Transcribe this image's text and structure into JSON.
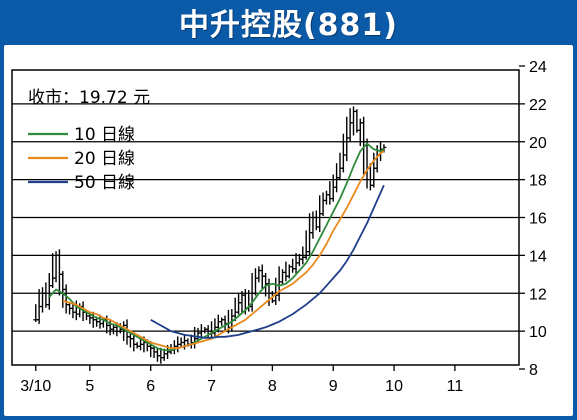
{
  "title": "中升控股(881)",
  "close_label": "收市：19.72 元",
  "chart_data": {
    "type": "line",
    "title": "中升控股(881)",
    "xlabel": "",
    "ylabel": "",
    "ylim": [
      8,
      24
    ],
    "y_ticks": [
      8,
      10,
      12,
      14,
      16,
      18,
      20,
      22,
      24
    ],
    "x_ticks": [
      "3/10",
      "5",
      "6",
      "7",
      "8",
      "9",
      "10",
      "11"
    ],
    "x_tick_positions": [
      0,
      8,
      17,
      26,
      35,
      44,
      53,
      62
    ],
    "x_range": [
      -1,
      70
    ],
    "grid": true,
    "legend_position": "top-left",
    "annotation": "收市：19.72 元",
    "candles": {
      "wick_color": "#000000",
      "points": [
        [
          0,
          10.6
        ],
        [
          0.5,
          11.3
        ],
        [
          1,
          12.0
        ],
        [
          1.5,
          11.4
        ],
        [
          2,
          12.4
        ],
        [
          2.5,
          12.8
        ],
        [
          3,
          14.0
        ],
        [
          3.5,
          13.0
        ],
        [
          4,
          12.2
        ],
        [
          4.5,
          11.4
        ],
        [
          5,
          11.2
        ],
        [
          5.5,
          11.0
        ],
        [
          6,
          10.9
        ],
        [
          6.5,
          11.3
        ],
        [
          7,
          11.0
        ],
        [
          7.5,
          10.8
        ],
        [
          8,
          10.7
        ],
        [
          8.5,
          10.6
        ],
        [
          9,
          10.5
        ],
        [
          9.5,
          10.4
        ],
        [
          10,
          10.6
        ],
        [
          10.5,
          10.3
        ],
        [
          11,
          10.1
        ],
        [
          11.5,
          10.2
        ],
        [
          12,
          10.0
        ],
        [
          12.5,
          10.1
        ],
        [
          13,
          10.3
        ],
        [
          13.5,
          9.7
        ],
        [
          14,
          9.6
        ],
        [
          14.5,
          9.3
        ],
        [
          15,
          9.2
        ],
        [
          15.5,
          9.3
        ],
        [
          16,
          9.4
        ],
        [
          16.5,
          9.2
        ],
        [
          17,
          9.1
        ],
        [
          17.5,
          8.9
        ],
        [
          18,
          8.7
        ],
        [
          18.5,
          8.6
        ],
        [
          19,
          8.8
        ],
        [
          19.5,
          8.9
        ],
        [
          20,
          9.0
        ],
        [
          20.5,
          9.2
        ],
        [
          21,
          9.3
        ],
        [
          21.5,
          9.4
        ],
        [
          22,
          9.5
        ],
        [
          22.5,
          9.3
        ],
        [
          23,
          9.4
        ],
        [
          23.5,
          9.6
        ],
        [
          24,
          9.9
        ],
        [
          24.5,
          10.0
        ],
        [
          25,
          10.1
        ],
        [
          25.5,
          10.0
        ],
        [
          26,
          9.9
        ],
        [
          26.5,
          10.2
        ],
        [
          27,
          10.5
        ],
        [
          27.5,
          10.6
        ],
        [
          28,
          10.4
        ],
        [
          28.5,
          10.2
        ],
        [
          29,
          10.8
        ],
        [
          29.5,
          11.0
        ],
        [
          30,
          11.5
        ],
        [
          30.5,
          11.9
        ],
        [
          31,
          11.2
        ],
        [
          31.5,
          11.3
        ],
        [
          32,
          12.0
        ],
        [
          32.5,
          12.8
        ],
        [
          33,
          13.2
        ],
        [
          33.5,
          12.9
        ],
        [
          34,
          12.5
        ],
        [
          34.5,
          12.0
        ],
        [
          35,
          11.6
        ],
        [
          35.5,
          11.9
        ],
        [
          36,
          12.6
        ],
        [
          36.5,
          13.1
        ],
        [
          37,
          12.9
        ],
        [
          37.5,
          13.4
        ],
        [
          38,
          13.3
        ],
        [
          38.5,
          13.6
        ],
        [
          39,
          13.8
        ],
        [
          39.5,
          13.9
        ],
        [
          40,
          14.2
        ],
        [
          40.5,
          15.2
        ],
        [
          41,
          16.0
        ],
        [
          41.5,
          15.5
        ],
        [
          42,
          16.2
        ],
        [
          42.5,
          16.9
        ],
        [
          43,
          17.2
        ],
        [
          43.5,
          17.0
        ],
        [
          44,
          17.6
        ],
        [
          44.5,
          18.1
        ],
        [
          45,
          18.6
        ],
        [
          45.5,
          19.3
        ],
        [
          46,
          20.2
        ],
        [
          46.5,
          21.0
        ],
        [
          47,
          21.6
        ],
        [
          47.5,
          20.6
        ],
        [
          48,
          21.0
        ],
        [
          48.5,
          20.0
        ],
        [
          49,
          18.6
        ],
        [
          49.5,
          17.7
        ],
        [
          50,
          18.6
        ],
        [
          50.5,
          19.3
        ],
        [
          51,
          19.6
        ],
        [
          51.5,
          19.7
        ]
      ]
    },
    "series": [
      {
        "name": "10 日線",
        "color": "#2e8b3a",
        "points": [
          [
            2,
            11.8
          ],
          [
            3,
            12.2
          ],
          [
            4,
            12.0
          ],
          [
            5,
            11.7
          ],
          [
            6,
            11.3
          ],
          [
            7,
            11.1
          ],
          [
            8,
            10.9
          ],
          [
            9,
            10.7
          ],
          [
            10,
            10.6
          ],
          [
            11,
            10.4
          ],
          [
            12,
            10.3
          ],
          [
            13,
            10.1
          ],
          [
            14,
            9.9
          ],
          [
            15,
            9.7
          ],
          [
            16,
            9.5
          ],
          [
            17,
            9.3
          ],
          [
            18,
            9.1
          ],
          [
            19,
            9.0
          ],
          [
            20,
            9.0
          ],
          [
            21,
            9.1
          ],
          [
            22,
            9.2
          ],
          [
            23,
            9.3
          ],
          [
            24,
            9.5
          ],
          [
            25,
            9.7
          ],
          [
            26,
            9.9
          ],
          [
            27,
            10.1
          ],
          [
            28,
            10.3
          ],
          [
            29,
            10.5
          ],
          [
            30,
            10.8
          ],
          [
            31,
            11.1
          ],
          [
            32,
            11.5
          ],
          [
            33,
            12.0
          ],
          [
            34,
            12.4
          ],
          [
            35,
            12.5
          ],
          [
            36,
            12.4
          ],
          [
            37,
            12.5
          ],
          [
            38,
            12.8
          ],
          [
            39,
            13.2
          ],
          [
            40,
            13.6
          ],
          [
            41,
            14.2
          ],
          [
            42,
            14.9
          ],
          [
            43,
            15.6
          ],
          [
            44,
            16.3
          ],
          [
            45,
            17.0
          ],
          [
            46,
            17.8
          ],
          [
            47,
            18.7
          ],
          [
            48,
            19.5
          ],
          [
            49,
            19.9
          ],
          [
            50,
            19.6
          ],
          [
            51,
            19.5
          ],
          [
            51.5,
            19.6
          ]
        ]
      },
      {
        "name": "20 日線",
        "color": "#e8891e",
        "points": [
          [
            4,
            11.6
          ],
          [
            5,
            11.5
          ],
          [
            6,
            11.4
          ],
          [
            7,
            11.2
          ],
          [
            8,
            11.0
          ],
          [
            9,
            10.9
          ],
          [
            10,
            10.7
          ],
          [
            11,
            10.6
          ],
          [
            12,
            10.4
          ],
          [
            13,
            10.2
          ],
          [
            14,
            10.0
          ],
          [
            15,
            9.8
          ],
          [
            16,
            9.6
          ],
          [
            17,
            9.4
          ],
          [
            18,
            9.3
          ],
          [
            19,
            9.2
          ],
          [
            20,
            9.1
          ],
          [
            21,
            9.1
          ],
          [
            22,
            9.2
          ],
          [
            23,
            9.3
          ],
          [
            24,
            9.4
          ],
          [
            25,
            9.5
          ],
          [
            26,
            9.6
          ],
          [
            27,
            9.8
          ],
          [
            28,
            10.0
          ],
          [
            29,
            10.2
          ],
          [
            30,
            10.4
          ],
          [
            31,
            10.6
          ],
          [
            32,
            10.9
          ],
          [
            33,
            11.2
          ],
          [
            34,
            11.5
          ],
          [
            35,
            11.8
          ],
          [
            36,
            12.1
          ],
          [
            37,
            12.3
          ],
          [
            38,
            12.5
          ],
          [
            39,
            12.8
          ],
          [
            40,
            13.1
          ],
          [
            41,
            13.5
          ],
          [
            42,
            14.0
          ],
          [
            43,
            14.6
          ],
          [
            44,
            15.3
          ],
          [
            45,
            15.9
          ],
          [
            46,
            16.5
          ],
          [
            47,
            17.2
          ],
          [
            48,
            17.9
          ],
          [
            49,
            18.5
          ],
          [
            50,
            19.0
          ],
          [
            51,
            19.4
          ],
          [
            51.5,
            19.5
          ]
        ]
      },
      {
        "name": "50 日線",
        "color": "#1f3f8a",
        "points": [
          [
            17,
            10.6
          ],
          [
            18,
            10.4
          ],
          [
            19,
            10.2
          ],
          [
            20,
            10.0
          ],
          [
            21,
            9.9
          ],
          [
            22,
            9.8
          ],
          [
            23,
            9.75
          ],
          [
            24,
            9.7
          ],
          [
            25,
            9.65
          ],
          [
            26,
            9.65
          ],
          [
            27,
            9.7
          ],
          [
            28,
            9.7
          ],
          [
            29,
            9.75
          ],
          [
            30,
            9.8
          ],
          [
            31,
            9.9
          ],
          [
            32,
            10.0
          ],
          [
            33,
            10.1
          ],
          [
            34,
            10.2
          ],
          [
            35,
            10.35
          ],
          [
            36,
            10.5
          ],
          [
            37,
            10.7
          ],
          [
            38,
            10.9
          ],
          [
            39,
            11.15
          ],
          [
            40,
            11.4
          ],
          [
            41,
            11.7
          ],
          [
            42,
            12.0
          ],
          [
            43,
            12.4
          ],
          [
            44,
            12.8
          ],
          [
            45,
            13.2
          ],
          [
            46,
            13.7
          ],
          [
            47,
            14.3
          ],
          [
            48,
            15.0
          ],
          [
            49,
            15.7
          ],
          [
            50,
            16.5
          ],
          [
            51,
            17.3
          ],
          [
            51.5,
            17.7
          ]
        ]
      }
    ]
  }
}
